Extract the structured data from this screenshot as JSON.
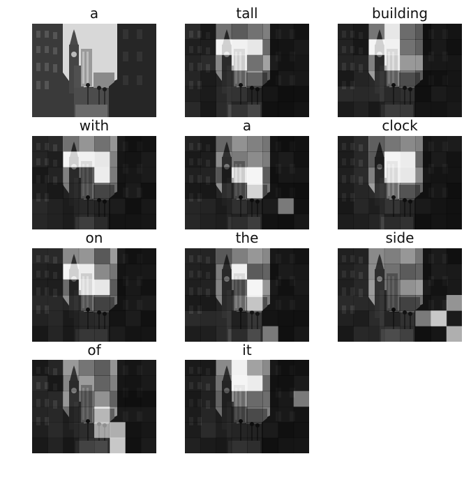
{
  "captions": [
    "a",
    "tall",
    "building",
    "with",
    "a",
    "clock",
    "on",
    "the",
    "side",
    "of",
    "it"
  ],
  "attention_grid": {
    "rows": 6,
    "cols": 8
  },
  "attention_peaks": [
    null,
    [
      [
        1,
        2
      ],
      [
        1,
        3
      ],
      [
        2,
        3
      ],
      [
        1,
        4
      ]
    ],
    [
      [
        1,
        2
      ],
      [
        1,
        3
      ],
      [
        2,
        3
      ],
      [
        0,
        3
      ]
    ],
    [
      [
        1,
        2
      ],
      [
        1,
        3
      ],
      [
        2,
        4
      ],
      [
        1,
        4
      ]
    ],
    [
      [
        2,
        4
      ],
      [
        3,
        4
      ],
      [
        2,
        3
      ],
      [
        4,
        6
      ]
    ],
    [
      [
        1,
        3
      ],
      [
        2,
        3
      ],
      [
        1,
        4
      ],
      [
        2,
        4
      ]
    ],
    [
      [
        1,
        2
      ],
      [
        2,
        3
      ],
      [
        1,
        3
      ],
      [
        2,
        4
      ]
    ],
    [
      [
        2,
        4
      ],
      [
        1,
        3
      ],
      [
        3,
        4
      ],
      [
        5,
        5
      ]
    ],
    [
      [
        4,
        6
      ],
      [
        5,
        7
      ],
      [
        3,
        7
      ],
      [
        4,
        5
      ]
    ],
    [
      [
        5,
        5
      ],
      [
        4,
        5
      ],
      [
        4,
        4
      ],
      [
        3,
        4
      ]
    ],
    [
      [
        1,
        3
      ],
      [
        0,
        3
      ],
      [
        1,
        4
      ],
      [
        2,
        7
      ]
    ]
  ],
  "colors": {
    "background": "#ffffff",
    "title": "#111111"
  }
}
